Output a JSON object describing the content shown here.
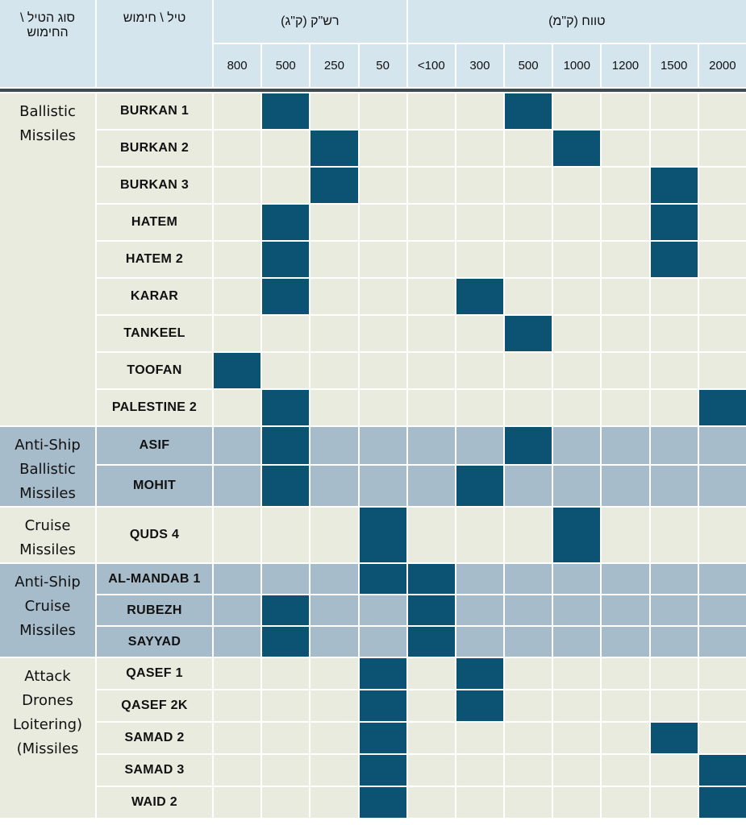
{
  "chart_data": {
    "type": "table",
    "headers": {
      "category": "סוג הטיל \\ החימוש",
      "name": "טיל \\ חימוש",
      "warhead_group": "רש\"ק (ק\"ג)",
      "range_group": "טווח (ק\"מ)",
      "warhead_cols": [
        "800",
        "500",
        "250",
        "50"
      ],
      "range_cols": [
        "<100",
        "300",
        "500",
        "1000",
        "1200",
        "1500",
        "2000"
      ]
    },
    "groups": [
      {
        "category": "Ballistic Missiles",
        "lines": [
          "Ballistic",
          "Missiles"
        ],
        "shade": "light",
        "items": [
          {
            "name": "BURKAN 1",
            "warhead": "500",
            "range": "500"
          },
          {
            "name": "BURKAN 2",
            "warhead": "250",
            "range": "1000"
          },
          {
            "name": "BURKAN 3",
            "warhead": "250",
            "range": "1500"
          },
          {
            "name": "HATEM",
            "warhead": "500",
            "range": "1500"
          },
          {
            "name": "HATEM 2",
            "warhead": "500",
            "range": "1500"
          },
          {
            "name": "KARAR",
            "warhead": "500",
            "range": "300"
          },
          {
            "name": "TANKEEL",
            "warhead": null,
            "range": "500"
          },
          {
            "name": "TOOFAN",
            "warhead": "800",
            "range": null
          },
          {
            "name": "PALESTINE 2",
            "warhead": "500",
            "range": "2000"
          }
        ]
      },
      {
        "category": "Anti-Ship Ballistic Missiles",
        "lines": [
          "Anti-Ship",
          "Ballistic",
          "Missiles"
        ],
        "shade": "blue",
        "items": [
          {
            "name": "ASIF",
            "warhead": "500",
            "range": "500"
          },
          {
            "name": "MOHIT",
            "warhead": "500",
            "range": "300"
          }
        ]
      },
      {
        "category": "Cruise Missiles",
        "lines": [
          "Cruise",
          "Missiles"
        ],
        "shade": "light",
        "items": [
          {
            "name": "QUDS 4",
            "warhead": "50",
            "range": "1000"
          }
        ]
      },
      {
        "category": "Anti-Ship Cruise Missiles",
        "lines": [
          "Anti-Ship",
          "Cruise",
          "Missiles"
        ],
        "shade": "blue",
        "items": [
          {
            "name": "AL-MANDAB 1",
            "warhead": "50",
            "range": "<100"
          },
          {
            "name": "RUBEZH",
            "warhead": "500",
            "range": "<100"
          },
          {
            "name": "SAYYAD",
            "warhead": "500",
            "range": "<100"
          }
        ]
      },
      {
        "category": "Attack Drones Loitering) (Missiles",
        "lines": [
          "Attack",
          "Drones",
          "Loitering)",
          "(Missiles"
        ],
        "shade": "light",
        "items": [
          {
            "name": "QASEF 1",
            "warhead": "50",
            "range": "300"
          },
          {
            "name": "QASEF 2K",
            "warhead": "50",
            "range": "300"
          },
          {
            "name": "SAMAD 2",
            "warhead": "50",
            "range": "1500"
          },
          {
            "name": "SAMAD 3",
            "warhead": "50",
            "range": "2000"
          },
          {
            "name": "WAID 2",
            "warhead": "50",
            "range": "2000"
          }
        ]
      }
    ],
    "colors": {
      "filled": "#0b5273",
      "header": "#d5e5ed",
      "light": "#e9ebdf",
      "blue": "#a7bccb"
    }
  }
}
